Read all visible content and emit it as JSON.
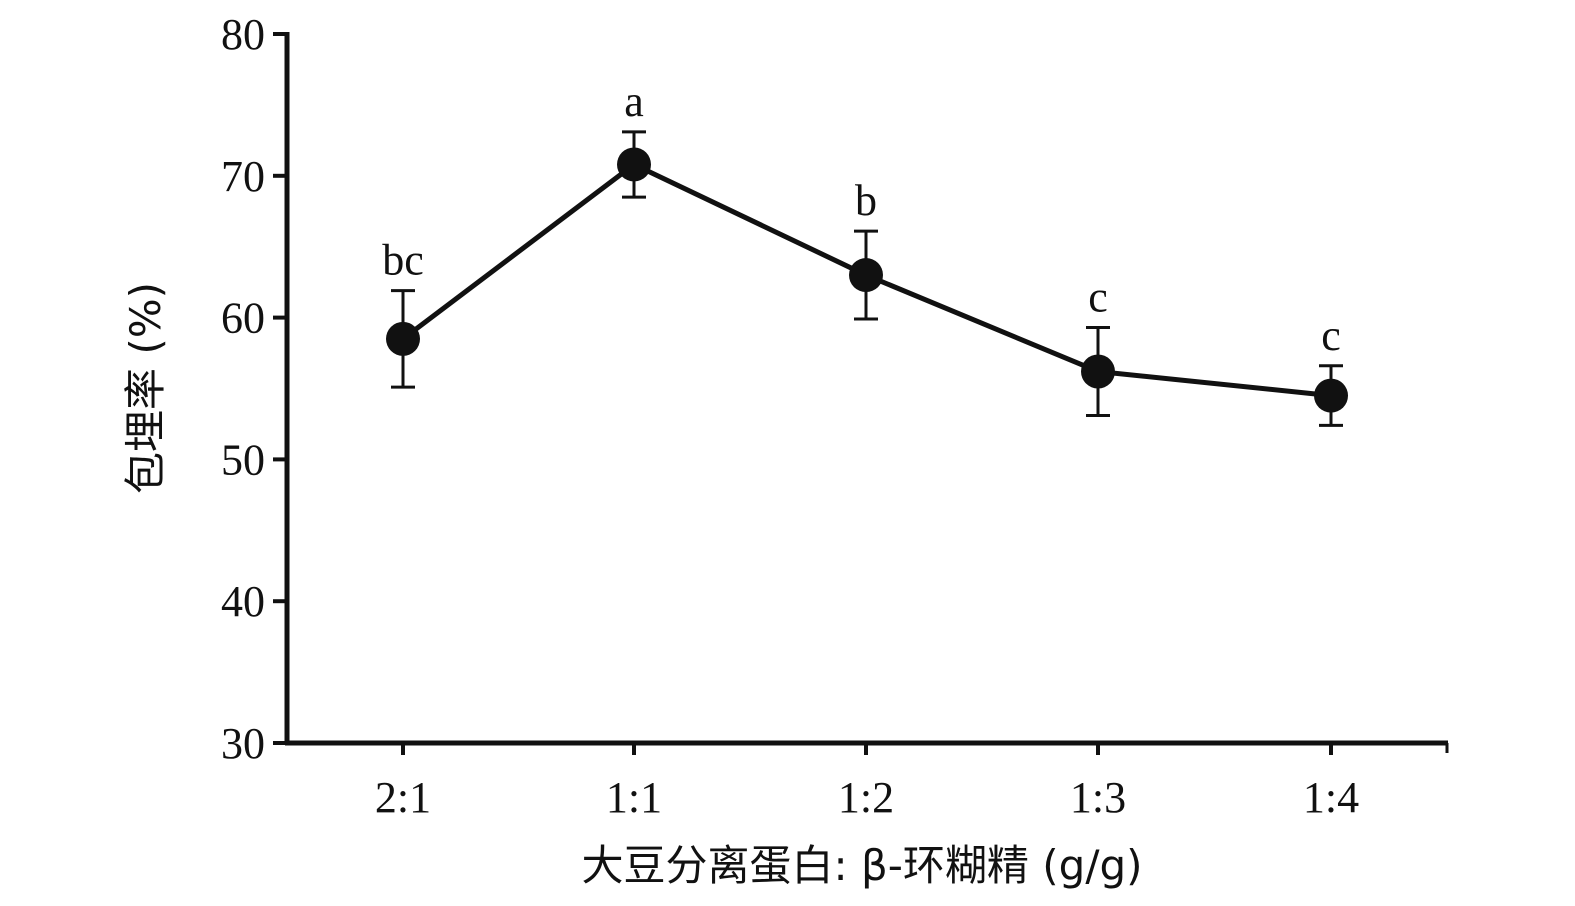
{
  "chart_data": {
    "type": "line",
    "title": "",
    "xlabel": "大豆分离蛋白: β-环糊精 (g/g)",
    "ylabel": "包埋率 (%)",
    "categories": [
      "2:1",
      "1:1",
      "1:2",
      "1:3",
      "1:4"
    ],
    "ylim": [
      30,
      80
    ],
    "yticks": [
      30,
      40,
      50,
      60,
      70,
      80
    ],
    "series": [
      {
        "values": [
          58.5,
          70.8,
          63.0,
          56.2,
          54.5
        ],
        "errors": [
          3.4,
          2.3,
          3.1,
          3.1,
          2.1
        ],
        "significance": [
          "bc",
          "a",
          "b",
          "c",
          "c"
        ]
      }
    ],
    "grid": false,
    "colors": {
      "line": "#111111",
      "marker": "#111111",
      "axis": "#111111"
    }
  }
}
